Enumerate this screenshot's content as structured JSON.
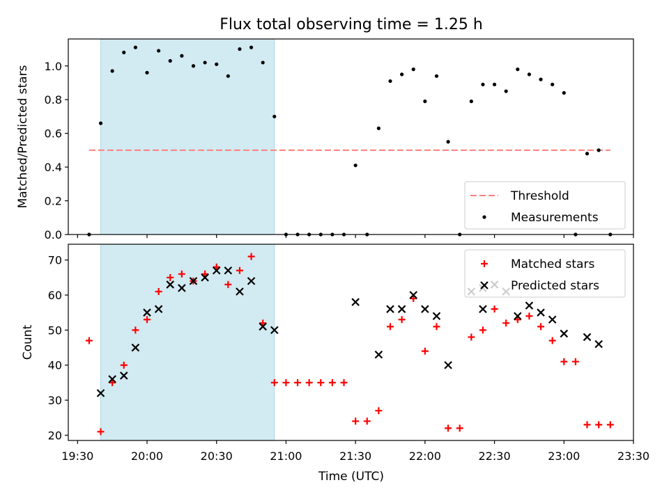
{
  "title": "Flux total observing time = 1.25 h",
  "x_ticks": [
    "19:30",
    "20:00",
    "20:30",
    "21:00",
    "21:30",
    "22:00",
    "22:30",
    "23:00",
    "23:30"
  ],
  "x_label": "Time (UTC)",
  "colors": {
    "highlight": "#add8e6",
    "threshold": "#ff7f7f",
    "measurement": "#000000",
    "matched": "#ff0000",
    "predicted": "#000000"
  },
  "chart_data": [
    {
      "type": "scatter",
      "ylabel": "Matched/Predicted stars",
      "ylim": [
        0,
        1.16
      ],
      "y_ticks": [
        "0.0",
        "0.2",
        "0.4",
        "0.6",
        "0.8",
        "1.0"
      ],
      "x_range": [
        "19:26",
        "23:30"
      ],
      "highlight_span": [
        "19:40",
        "20:55"
      ],
      "threshold": {
        "label": "Threshold",
        "value": 0.5,
        "x": [
          "19:35",
          "23:20"
        ]
      },
      "legend": {
        "position": "lower-right",
        "entries": [
          "Threshold",
          "Measurements"
        ]
      },
      "series": [
        {
          "name": "Measurements",
          "points": [
            [
              "19:35",
              0.0
            ],
            [
              "19:40",
              0.66
            ],
            [
              "19:45",
              0.97
            ],
            [
              "19:50",
              1.08
            ],
            [
              "19:55",
              1.11
            ],
            [
              "20:00",
              0.96
            ],
            [
              "20:05",
              1.09
            ],
            [
              "20:10",
              1.03
            ],
            [
              "20:15",
              1.06
            ],
            [
              "20:20",
              1.0
            ],
            [
              "20:25",
              1.02
            ],
            [
              "20:30",
              1.01
            ],
            [
              "20:35",
              0.94
            ],
            [
              "20:40",
              1.1
            ],
            [
              "20:45",
              1.11
            ],
            [
              "20:50",
              1.02
            ],
            [
              "20:55",
              0.7
            ],
            [
              "21:00",
              0.0
            ],
            [
              "21:05",
              0.0
            ],
            [
              "21:10",
              0.0
            ],
            [
              "21:15",
              0.0
            ],
            [
              "21:20",
              0.0
            ],
            [
              "21:25",
              0.0
            ],
            [
              "21:30",
              0.41
            ],
            [
              "21:35",
              0.0
            ],
            [
              "21:40",
              0.63
            ],
            [
              "21:45",
              0.91
            ],
            [
              "21:50",
              0.95
            ],
            [
              "21:55",
              0.98
            ],
            [
              "22:00",
              0.79
            ],
            [
              "22:05",
              0.94
            ],
            [
              "22:10",
              0.55
            ],
            [
              "22:15",
              0.0
            ],
            [
              "22:20",
              0.79
            ],
            [
              "22:25",
              0.89
            ],
            [
              "22:30",
              0.89
            ],
            [
              "22:35",
              0.85
            ],
            [
              "22:40",
              0.98
            ],
            [
              "22:45",
              0.95
            ],
            [
              "22:50",
              0.92
            ],
            [
              "22:55",
              0.89
            ],
            [
              "23:00",
              0.84
            ],
            [
              "23:05",
              0.0
            ],
            [
              "23:10",
              0.48
            ],
            [
              "23:15",
              0.5
            ],
            [
              "23:20",
              0.0
            ]
          ]
        }
      ]
    },
    {
      "type": "scatter",
      "ylabel": "Count",
      "ylim": [
        18.5,
        74.5
      ],
      "y_ticks": [
        "20",
        "30",
        "40",
        "50",
        "60",
        "70"
      ],
      "x_range": [
        "19:26",
        "23:30"
      ],
      "highlight_span": [
        "19:40",
        "20:55"
      ],
      "legend": {
        "position": "upper-right",
        "entries": [
          "Matched stars",
          "Predicted stars"
        ]
      },
      "series": [
        {
          "name": "Matched stars",
          "marker": "+",
          "points": [
            [
              "19:35",
              47
            ],
            [
              "19:40",
              21
            ],
            [
              "19:45",
              35
            ],
            [
              "19:50",
              40
            ],
            [
              "19:55",
              50
            ],
            [
              "20:00",
              53
            ],
            [
              "20:05",
              61
            ],
            [
              "20:10",
              65
            ],
            [
              "20:15",
              66
            ],
            [
              "20:20",
              64
            ],
            [
              "20:25",
              66
            ],
            [
              "20:30",
              68
            ],
            [
              "20:35",
              63
            ],
            [
              "20:40",
              67
            ],
            [
              "20:45",
              71
            ],
            [
              "20:50",
              52
            ],
            [
              "20:55",
              35
            ],
            [
              "21:00",
              35
            ],
            [
              "21:05",
              35
            ],
            [
              "21:10",
              35
            ],
            [
              "21:15",
              35
            ],
            [
              "21:20",
              35
            ],
            [
              "21:25",
              35
            ],
            [
              "21:30",
              24
            ],
            [
              "21:35",
              24
            ],
            [
              "21:40",
              27
            ],
            [
              "21:45",
              51
            ],
            [
              "21:50",
              53
            ],
            [
              "21:55",
              59
            ],
            [
              "22:00",
              44
            ],
            [
              "22:05",
              51
            ],
            [
              "22:10",
              22
            ],
            [
              "22:15",
              22
            ],
            [
              "22:20",
              48
            ],
            [
              "22:25",
              50
            ],
            [
              "22:30",
              56
            ],
            [
              "22:35",
              52
            ],
            [
              "22:40",
              53
            ],
            [
              "22:45",
              54
            ],
            [
              "22:50",
              51
            ],
            [
              "22:55",
              47
            ],
            [
              "23:00",
              41
            ],
            [
              "23:05",
              41
            ],
            [
              "23:10",
              23
            ],
            [
              "23:15",
              23
            ],
            [
              "23:20",
              23
            ]
          ]
        },
        {
          "name": "Predicted stars",
          "marker": "x",
          "points": [
            [
              "19:40",
              32
            ],
            [
              "19:45",
              36
            ],
            [
              "19:50",
              37
            ],
            [
              "19:55",
              45
            ],
            [
              "20:00",
              55
            ],
            [
              "20:05",
              56
            ],
            [
              "20:10",
              63
            ],
            [
              "20:15",
              62
            ],
            [
              "20:20",
              64
            ],
            [
              "20:25",
              65
            ],
            [
              "20:30",
              67
            ],
            [
              "20:35",
              67
            ],
            [
              "20:40",
              61
            ],
            [
              "20:45",
              64
            ],
            [
              "20:50",
              51
            ],
            [
              "20:55",
              50
            ],
            [
              "21:30",
              58
            ],
            [
              "21:40",
              43
            ],
            [
              "21:45",
              56
            ],
            [
              "21:50",
              56
            ],
            [
              "21:55",
              60
            ],
            [
              "22:00",
              56
            ],
            [
              "22:05",
              54
            ],
            [
              "22:10",
              40
            ],
            [
              "22:20",
              61
            ],
            [
              "22:25",
              56
            ],
            [
              "22:25",
              62
            ],
            [
              "22:30",
              63
            ],
            [
              "22:35",
              61
            ],
            [
              "22:40",
              54
            ],
            [
              "22:45",
              57
            ],
            [
              "22:50",
              55
            ],
            [
              "22:55",
              53
            ],
            [
              "23:00",
              49
            ],
            [
              "23:10",
              48
            ],
            [
              "23:15",
              46
            ]
          ]
        }
      ]
    }
  ]
}
